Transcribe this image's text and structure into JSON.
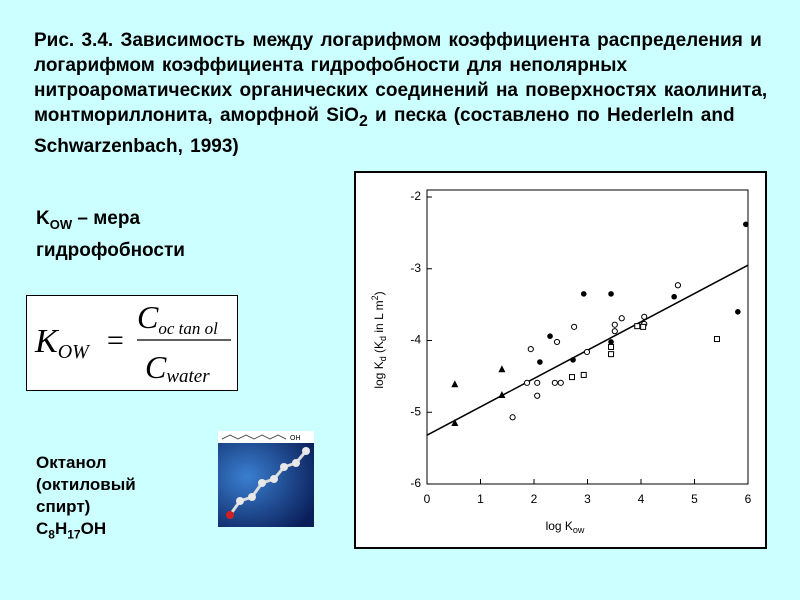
{
  "title": {
    "text_a": "Рис. 3.4. Зависимость между логарифмом коэффициента распределения  и логарифмом коэффициента гидрофобности для неполярных нитроароматических органических соединений на поверхностях каолинита, монтмориллонита, аморфной SiO",
    "sub": "2",
    "text_b": " и песка (составлено по  Hederleln and Schwarzenbach, 1993)"
  },
  "kow_note": {
    "k": "K",
    "sub": "OW",
    "rest": " – мера гидрофобности"
  },
  "formula": {
    "lhs": "K",
    "lhs_sub": "OW",
    "eq": "=",
    "num": "C",
    "num_sub": "oc tan ol",
    "den": "C",
    "den_sub": "water"
  },
  "octanol": {
    "name": "Октанол (октиловый спирт)",
    "formula_parts": [
      "C",
      "8",
      "H",
      "17",
      "OH"
    ],
    "image_label": "OH"
  },
  "chart_data": {
    "type": "scatter",
    "x_label": {
      "main": "log K",
      "sub": "ow"
    },
    "y_label": {
      "main": "log K",
      "sub": "d",
      "rest_a": " (K",
      "sub2": "d",
      "rest_b": " in L m",
      "sup": "2",
      "close": ")"
    },
    "xlim": [
      0,
      6
    ],
    "ylim": [
      -6,
      -2
    ],
    "xticks": [
      0,
      1,
      2,
      3,
      4,
      5,
      6
    ],
    "yticks": [
      -2,
      -3,
      -4,
      -5,
      -6
    ],
    "series": [
      {
        "marker": "triangle",
        "color": "#000000",
        "x": [
          0.52,
          0.52,
          1.4,
          1.4
        ],
        "values": [
          -4.61,
          -5.15,
          -4.4,
          -4.76
        ]
      },
      {
        "marker": "open-circle",
        "color": "#000000",
        "x": [
          1.6,
          1.87,
          1.94,
          2.06,
          2.06,
          2.39,
          2.43,
          2.5,
          2.75,
          2.99,
          3.51,
          3.51,
          3.64,
          4.06,
          4.06,
          4.69
        ],
        "values": [
          -5.07,
          -4.59,
          -4.12,
          -4.59,
          -4.77,
          -4.59,
          -4.02,
          -4.59,
          -3.81,
          -4.16,
          -3.78,
          -3.87,
          -3.69,
          -3.67,
          -3.77,
          -3.23
        ]
      },
      {
        "marker": "filled-circle",
        "color": "#000000",
        "x": [
          2.11,
          2.3,
          2.73,
          2.93,
          3.44,
          3.44,
          4.62,
          5.81,
          5.96
        ],
        "values": [
          -4.3,
          -3.94,
          -4.27,
          -3.35,
          -4.02,
          -3.35,
          -3.39,
          -3.6,
          -2.38
        ]
      },
      {
        "marker": "open-square",
        "color": "#000000",
        "x": [
          2.71,
          2.93,
          3.44,
          3.44,
          3.93,
          4.04,
          5.42
        ],
        "values": [
          -4.51,
          -4.48,
          -4.19,
          -4.09,
          -3.8,
          -3.81,
          -3.98
        ]
      }
    ],
    "fit_line": {
      "color": "#000000",
      "x": [
        0,
        6
      ],
      "values": [
        -5.32,
        -2.95
      ]
    }
  }
}
